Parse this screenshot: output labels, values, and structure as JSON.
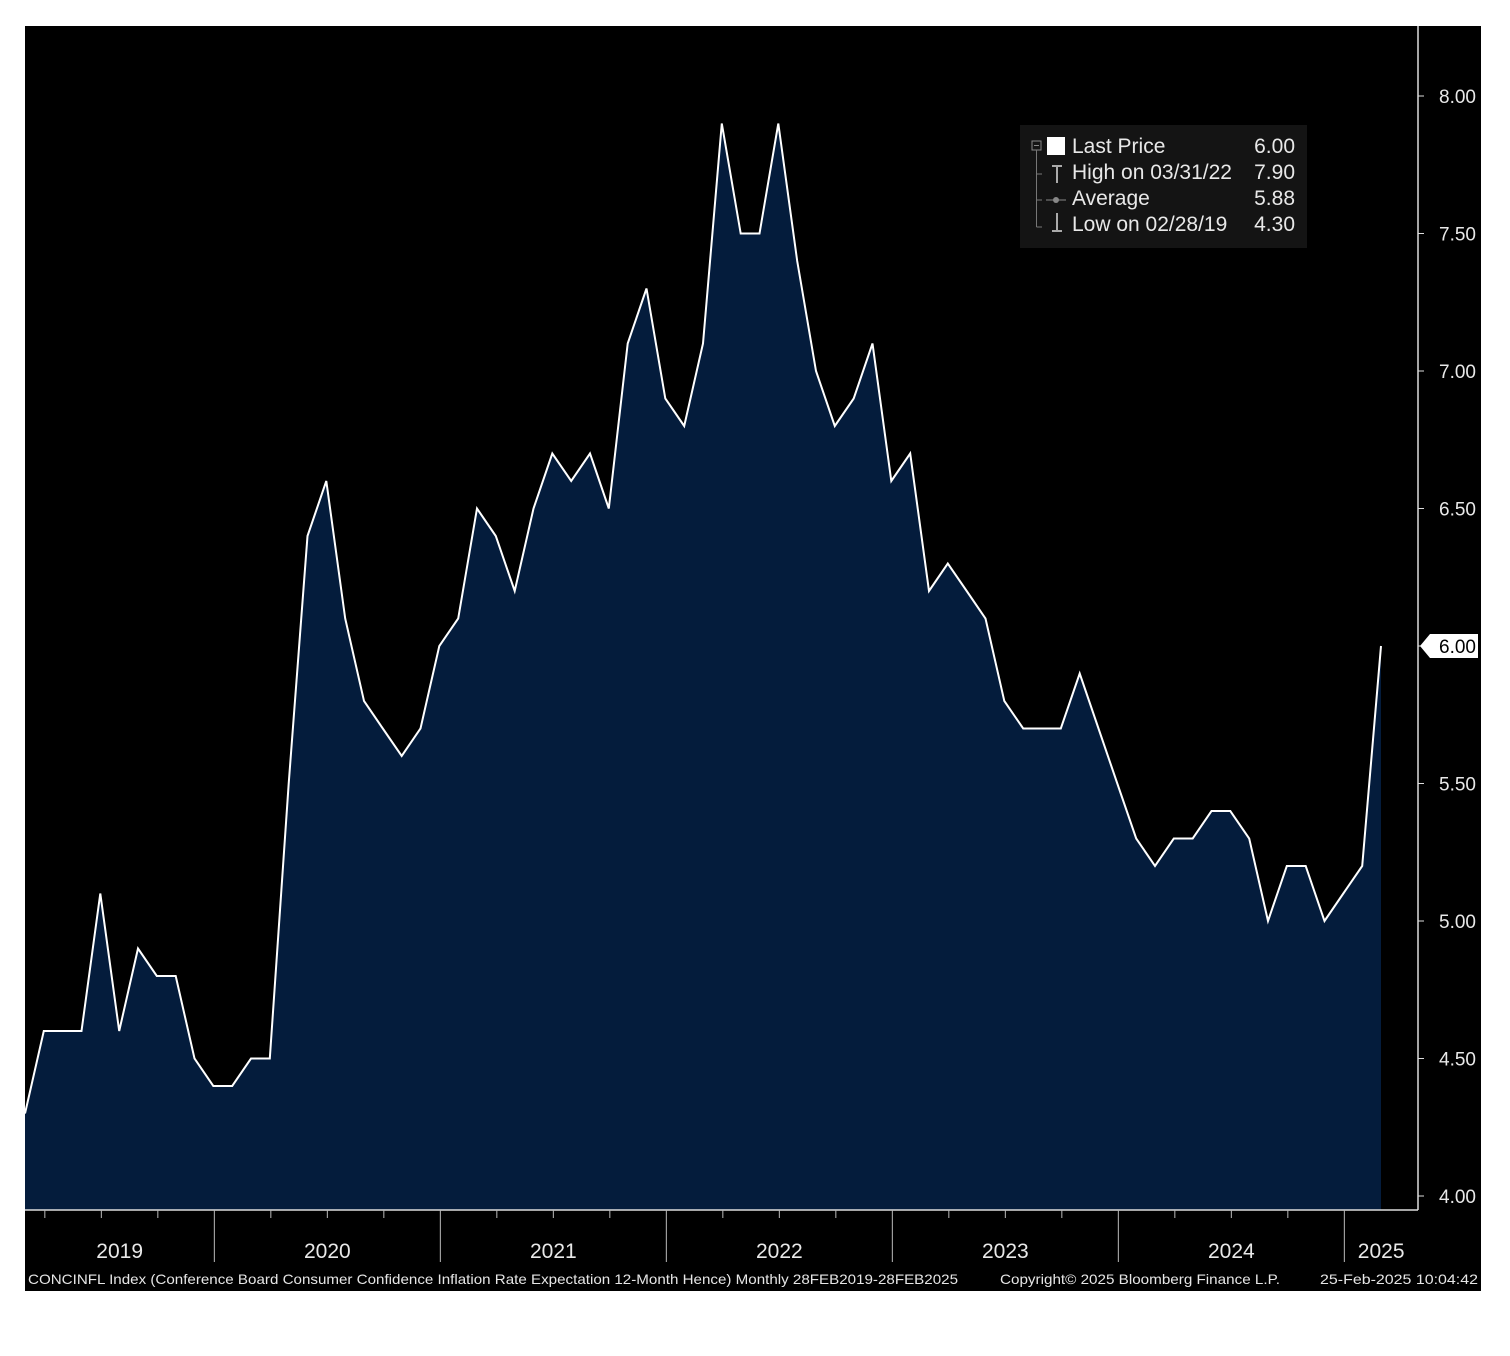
{
  "chart_data": {
    "type": "area",
    "title": "CONCINFL Index (Conference Board Consumer Confidence Inflation Rate Expectation 12-Month Hence) Monthly 28FEB2019-28FEB2025",
    "xlabel": "",
    "ylabel": "",
    "x_start": "2019-02",
    "frequency": "monthly",
    "values": [
      4.3,
      4.6,
      4.6,
      4.6,
      5.1,
      4.6,
      4.9,
      4.8,
      4.8,
      4.5,
      4.4,
      4.4,
      4.5,
      4.5,
      5.5,
      6.4,
      6.6,
      6.1,
      5.8,
      5.7,
      5.6,
      5.7,
      6.0,
      6.1,
      6.5,
      6.4,
      6.2,
      6.5,
      6.7,
      6.6,
      6.7,
      6.5,
      7.1,
      7.3,
      6.9,
      6.8,
      7.1,
      7.9,
      7.5,
      7.5,
      7.9,
      7.4,
      7.0,
      6.8,
      6.9,
      7.1,
      6.6,
      6.7,
      6.2,
      6.3,
      6.2,
      6.1,
      5.8,
      5.7,
      5.7,
      5.7,
      5.9,
      5.7,
      5.5,
      5.3,
      5.2,
      5.3,
      5.3,
      5.4,
      5.4,
      5.3,
      5.0,
      5.2,
      5.2,
      5.0,
      5.1,
      5.2,
      6.0
    ],
    "ylim": [
      4.0,
      8.2
    ],
    "y_ticks": [
      "4.00",
      "4.50",
      "5.00",
      "5.50",
      "6.00",
      "6.50",
      "7.00",
      "7.50",
      "8.00"
    ],
    "x_tick_labels": [
      "2019",
      "2020",
      "2021",
      "2022",
      "2023",
      "2024",
      "2025"
    ],
    "last_value_label": "6.00",
    "grid": false,
    "legend_position": "top-right",
    "legend": {
      "last_price_label": "Last Price",
      "last_price_value": "6.00",
      "high_label": "High on 03/31/22",
      "high_value": "7.90",
      "average_label": "Average",
      "average_value": "5.88",
      "low_label": "Low on 02/28/19",
      "low_value": "4.30"
    },
    "colors": {
      "fill": "#041c3c",
      "line": "#ffffff",
      "background": "#000000"
    }
  },
  "footer": {
    "description": "CONCINFL Index (Conference Board Consumer Confidence Inflation Rate Expectation 12-Month Hence)  Monthly 28FEB2019-28FEB2025",
    "copyright": "Copyright© 2025 Bloomberg Finance L.P.",
    "timestamp": "25-Feb-2025 10:04:42"
  }
}
